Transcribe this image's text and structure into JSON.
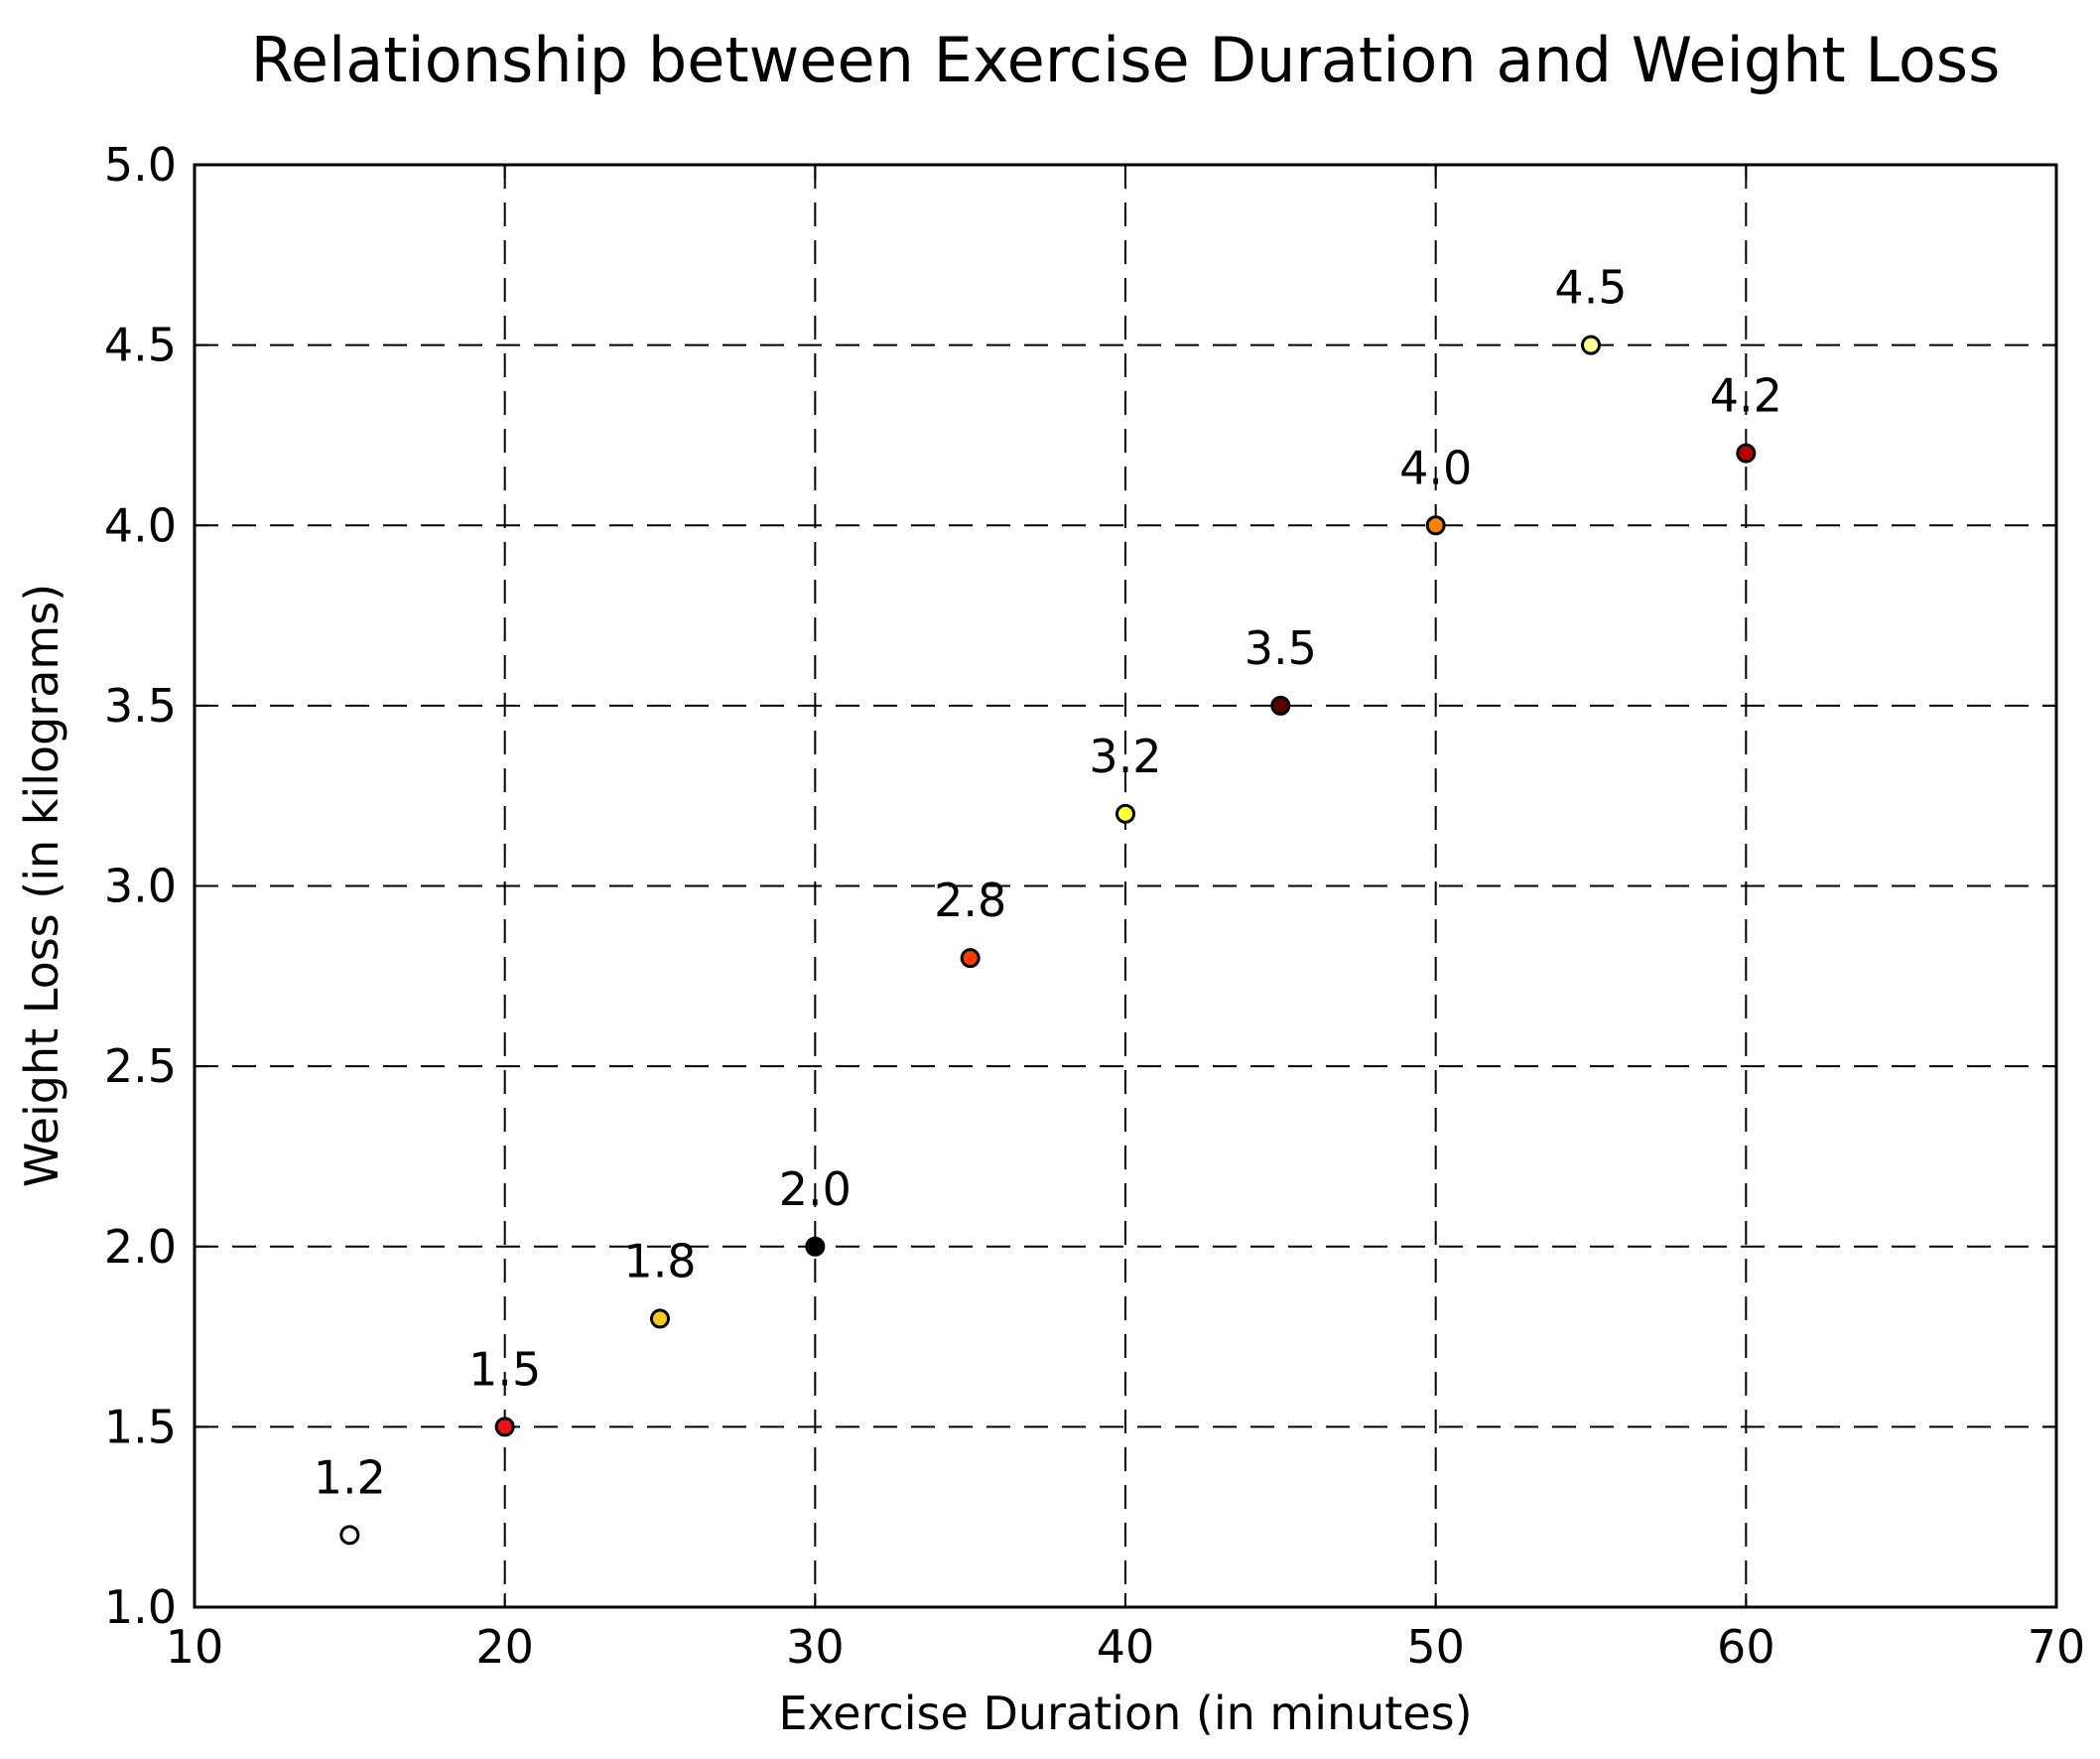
{
  "chart_data": {
    "type": "scatter",
    "title": "Relationship between Exercise Duration and Weight Loss",
    "xlabel": "Exercise Duration (in minutes)",
    "ylabel": "Weight Loss (in kilograms)",
    "xlim": [
      10,
      70
    ],
    "ylim": [
      1.0,
      5.0
    ],
    "xticks": [
      10,
      20,
      30,
      40,
      50,
      60,
      70
    ],
    "xtick_labels": [
      "10",
      "20",
      "30",
      "40",
      "50",
      "60",
      "70"
    ],
    "yticks": [
      1.0,
      1.5,
      2.0,
      2.5,
      3.0,
      3.5,
      4.0,
      4.5,
      5.0
    ],
    "ytick_labels": [
      "1.0",
      "1.5",
      "2.0",
      "2.5",
      "3.0",
      "3.5",
      "4.0",
      "4.5",
      "5.0"
    ],
    "grid": true,
    "grid_style": "dashed",
    "legend": "none",
    "points": [
      {
        "x": 15,
        "y": 1.2,
        "label": "1.2",
        "color": "#ffffff"
      },
      {
        "x": 20,
        "y": 1.5,
        "label": "1.5",
        "color": "#e8141a"
      },
      {
        "x": 25,
        "y": 1.8,
        "label": "1.8",
        "color": "#ffc81e"
      },
      {
        "x": 30,
        "y": 2.0,
        "label": "2.0",
        "color": "#000000"
      },
      {
        "x": 35,
        "y": 2.8,
        "label": "2.8",
        "color": "#ff3c0a"
      },
      {
        "x": 40,
        "y": 3.2,
        "label": "3.2",
        "color": "#ffff3c"
      },
      {
        "x": 45,
        "y": 3.5,
        "label": "3.5",
        "color": "#5a0000"
      },
      {
        "x": 50,
        "y": 4.0,
        "label": "4.0",
        "color": "#ff8000"
      },
      {
        "x": 55,
        "y": 4.5,
        "label": "4.5",
        "color": "#ffff96"
      },
      {
        "x": 60,
        "y": 4.2,
        "label": "4.2",
        "color": "#b40000"
      }
    ]
  }
}
